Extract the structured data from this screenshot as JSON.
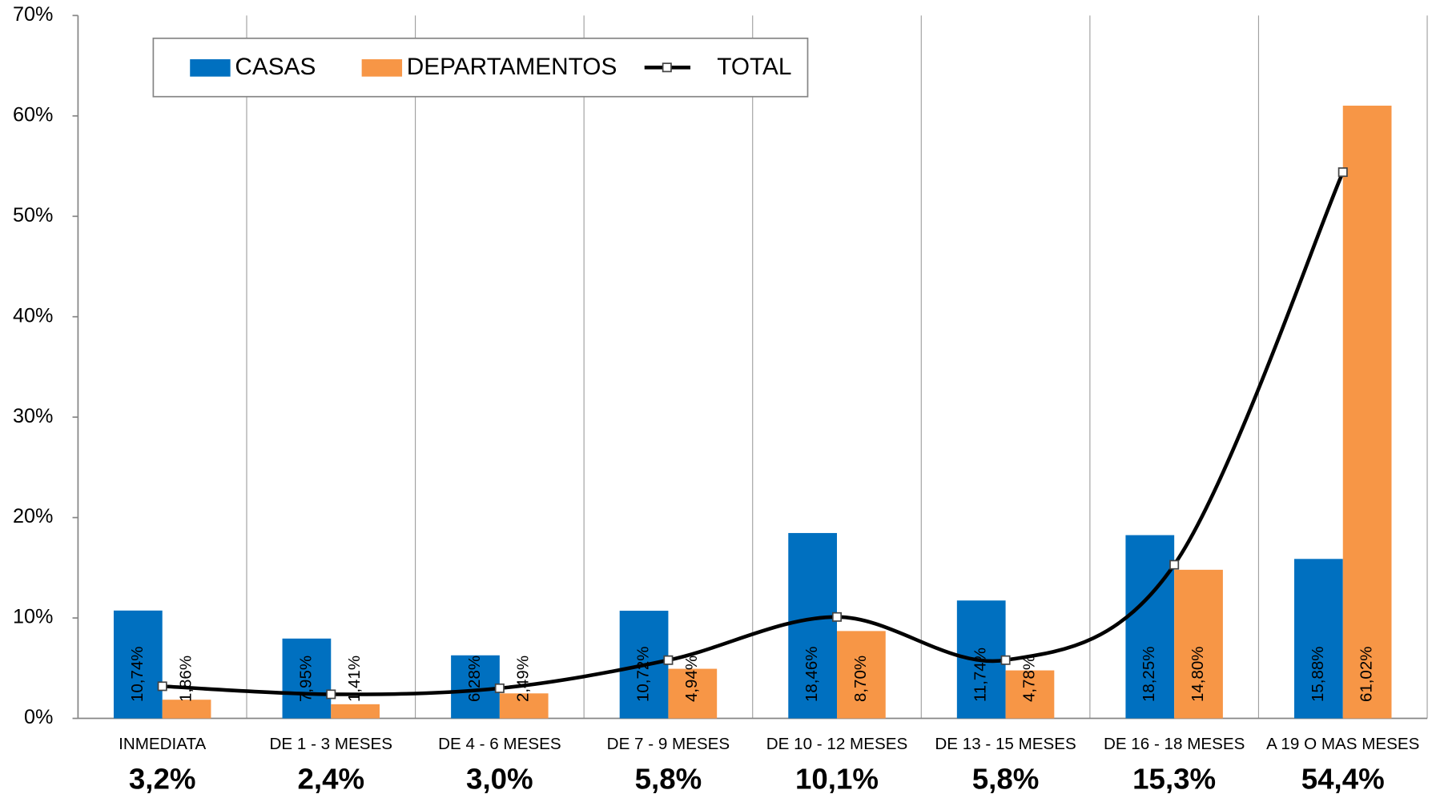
{
  "chart_data": {
    "type": "bar_line",
    "categories": [
      "INMEDIATA",
      "DE 1 - 3 MESES",
      "DE 4 - 6 MESES",
      "DE 7 - 9 MESES",
      "DE 10 - 12 MESES",
      "DE 13 - 15 MESES",
      "DE 16 - 18 MESES",
      "A 19 O MAS MESES"
    ],
    "series": [
      {
        "name": "CASAS",
        "type": "bar",
        "color": "#0070c0",
        "values": [
          10.74,
          7.95,
          6.28,
          10.72,
          18.46,
          11.74,
          18.25,
          15.88
        ],
        "value_labels": [
          "10,74%",
          "7,95%",
          "6,28%",
          "10,72%",
          "18,46%",
          "11,74%",
          "18,25%",
          "15,88%"
        ]
      },
      {
        "name": "DEPARTAMENTOS",
        "type": "bar",
        "color": "#f79646",
        "values": [
          1.86,
          1.41,
          2.49,
          4.94,
          8.7,
          4.78,
          14.8,
          61.02
        ],
        "value_labels": [
          "1,86%",
          "1,41%",
          "2,49%",
          "4,94%",
          "8,70%",
          "4,78%",
          "14,80%",
          "61,02%"
        ]
      },
      {
        "name": "TOTAL",
        "type": "line",
        "color": "#000000",
        "values": [
          3.2,
          2.4,
          3.0,
          5.8,
          10.1,
          5.8,
          15.3,
          54.4
        ],
        "value_labels": [
          "3,2%",
          "2,4%",
          "3,0%",
          "5,8%",
          "10,1%",
          "5,8%",
          "15,3%",
          "54,4%"
        ]
      }
    ],
    "ylim": [
      0,
      70
    ],
    "yticks": [
      {
        "value": 0,
        "label": "0%"
      },
      {
        "value": 10,
        "label": "10%"
      },
      {
        "value": 20,
        "label": "20%"
      },
      {
        "value": 30,
        "label": "30%"
      },
      {
        "value": 40,
        "label": "40%"
      },
      {
        "value": 50,
        "label": "50%"
      },
      {
        "value": 60,
        "label": "60%"
      },
      {
        "value": 70,
        "label": "70%"
      }
    ],
    "legend": "top-left"
  }
}
